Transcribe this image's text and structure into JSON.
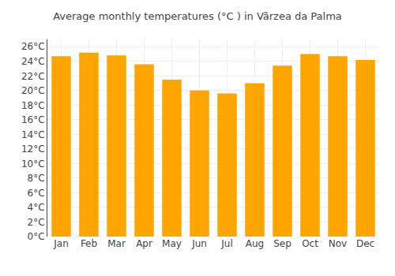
{
  "chart_data": {
    "type": "bar",
    "title": "Average monthly temperatures (°C ) in Vãrzea da Palma",
    "categories": [
      "Jan",
      "Feb",
      "Mar",
      "Apr",
      "May",
      "Jun",
      "Jul",
      "Aug",
      "Sep",
      "Oct",
      "Nov",
      "Dec"
    ],
    "values": [
      24.7,
      25.2,
      24.8,
      23.6,
      21.5,
      20.0,
      19.6,
      21.0,
      23.4,
      25.0,
      24.7,
      24.2
    ],
    "color": "#FFA500",
    "ylim": [
      0,
      27
    ],
    "yticks": [
      {
        "value": 0,
        "label": "0°C"
      },
      {
        "value": 2,
        "label": "2°C"
      },
      {
        "value": 4,
        "label": "4°C"
      },
      {
        "value": 6,
        "label": "6°C"
      },
      {
        "value": 8,
        "label": "8°C"
      },
      {
        "value": 10,
        "label": "10°C"
      },
      {
        "value": 12,
        "label": "12°C"
      },
      {
        "value": 14,
        "label": "14°C"
      },
      {
        "value": 16,
        "label": "16°C"
      },
      {
        "value": 18,
        "label": "18°C"
      },
      {
        "value": 20,
        "label": "20°C"
      },
      {
        "value": 22,
        "label": "22°C"
      },
      {
        "value": 24,
        "label": "24°C"
      },
      {
        "value": 26,
        "label": "26°C"
      }
    ],
    "grid": true
  }
}
